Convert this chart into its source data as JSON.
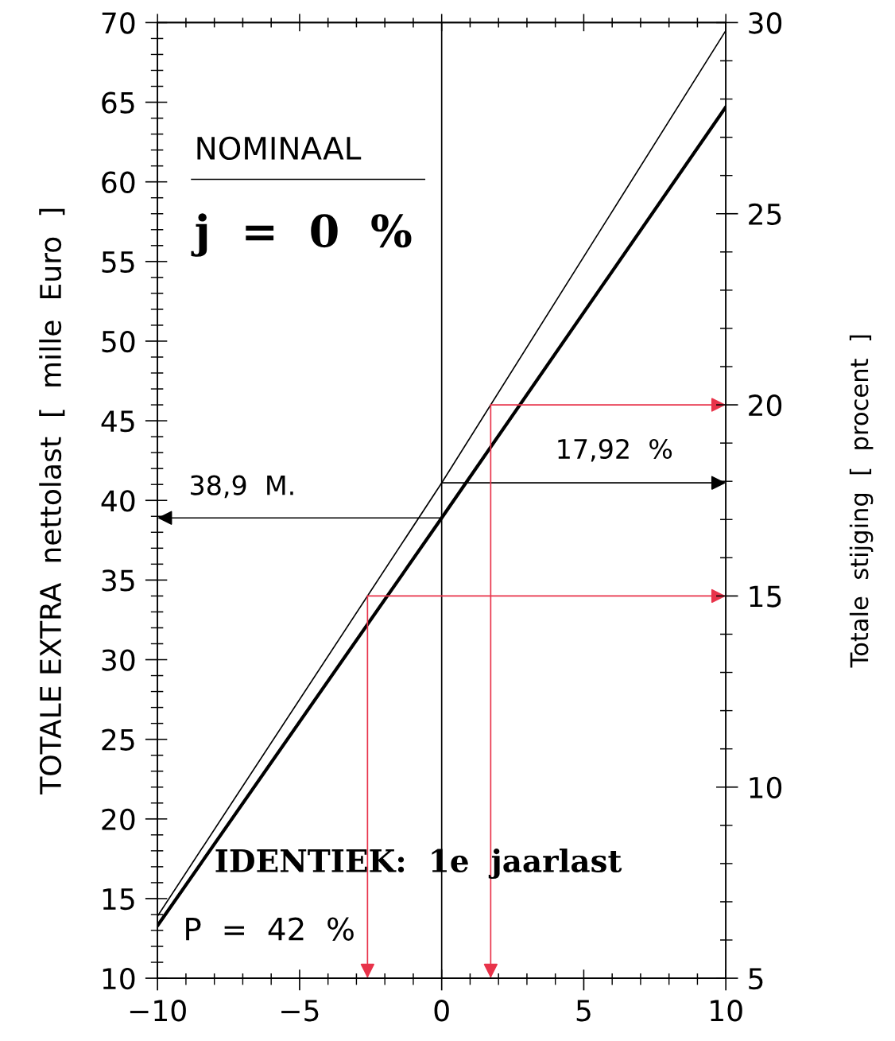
{
  "chart_data": {
    "type": "line",
    "ylabel": "TOTALE EXTRA  nettolast  [  mille  Euro  ]",
    "y2label": "Totale  stijging  [  procent  ]",
    "xlim": [
      -10,
      10
    ],
    "xticks": [
      {
        "value": -10,
        "label": "−10"
      },
      {
        "value": -5,
        "label": "−5"
      },
      0,
      5,
      10
    ],
    "ylim": [
      10,
      70
    ],
    "yticks": [
      10,
      15,
      20,
      25,
      30,
      35,
      40,
      45,
      50,
      55,
      60,
      65,
      70
    ],
    "y2lim": [
      5,
      30
    ],
    "y2ticks": [
      5,
      10,
      15,
      20,
      25,
      30
    ],
    "grid": false,
    "legend": false,
    "marker": "none",
    "series": [
      {
        "x": [
          -10,
          0,
          10
        ],
        "values": [
          13.9,
          41.1,
          69.5
        ],
        "color": "#000000"
      },
      {
        "x": [
          -10,
          0,
          10
        ],
        "values": [
          13.3,
          38.9,
          64.7
        ],
        "color": "#000000"
      }
    ],
    "ref_lines": [
      {
        "axis": "x",
        "value": 0,
        "color": "#000000"
      }
    ],
    "annotations": [
      "NOMINAAL",
      "j  =  0  %",
      "38,9  M.",
      "17,92  %",
      "IDENTIEK:  1e  jaarlast",
      "P  =  42  %"
    ]
  }
}
